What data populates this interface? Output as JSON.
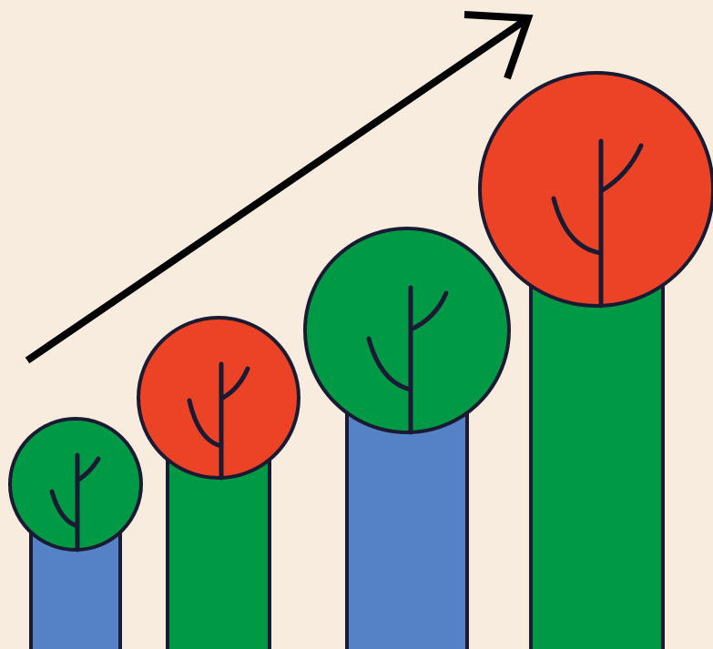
{
  "illustration": {
    "subject": "growth-trees",
    "colors": {
      "background": "#F7ECDD",
      "outline": "#1A1A33",
      "arrow": "#000000",
      "blue": "#5581C6",
      "green": "#009A47",
      "red": "#EC4326"
    },
    "trees": [
      {
        "id": "tree-1",
        "trunk_color": "blue",
        "crown_color": "green"
      },
      {
        "id": "tree-2",
        "trunk_color": "green",
        "crown_color": "red"
      },
      {
        "id": "tree-3",
        "trunk_color": "blue",
        "crown_color": "green"
      },
      {
        "id": "tree-4",
        "trunk_color": "green",
        "crown_color": "red"
      }
    ],
    "trend": "increasing"
  }
}
